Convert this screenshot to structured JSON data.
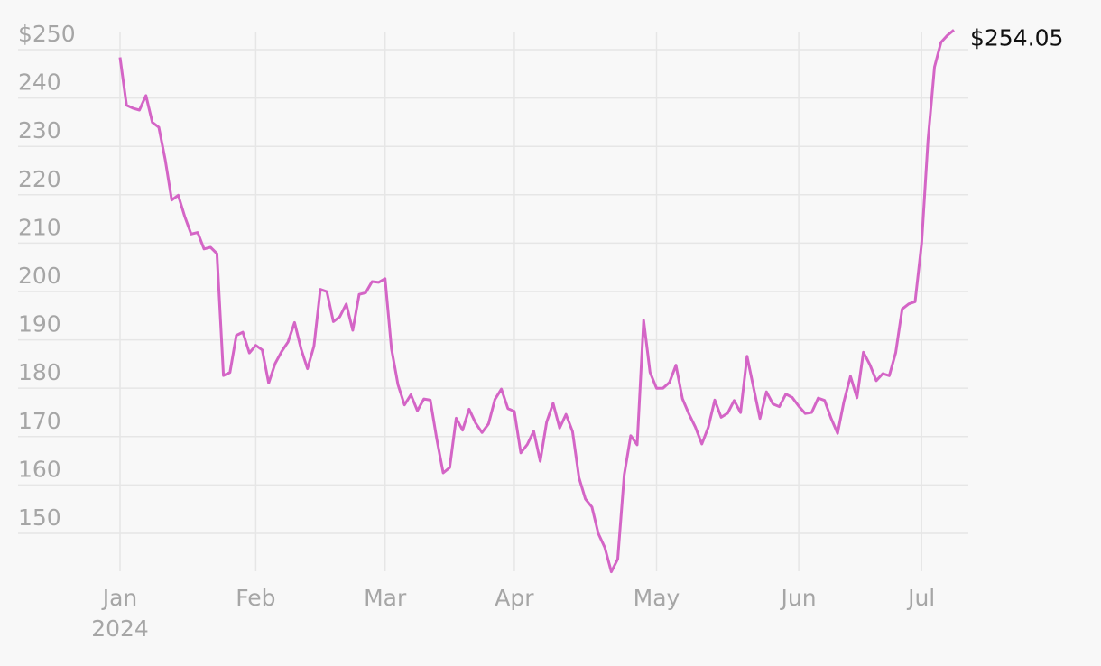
{
  "chart_data": {
    "type": "line",
    "categories": [
      "Jan",
      null,
      null,
      null,
      null,
      null,
      null,
      null,
      null,
      null,
      null,
      null,
      null,
      null,
      null,
      null,
      null,
      null,
      null,
      null,
      null,
      "Feb",
      null,
      null,
      null,
      null,
      null,
      null,
      null,
      null,
      null,
      null,
      null,
      null,
      null,
      null,
      null,
      null,
      null,
      null,
      null,
      "Mar",
      null,
      null,
      null,
      null,
      null,
      null,
      null,
      null,
      null,
      null,
      null,
      null,
      null,
      null,
      null,
      null,
      null,
      null,
      null,
      "Apr",
      null,
      null,
      null,
      null,
      null,
      null,
      null,
      null,
      null,
      null,
      null,
      null,
      null,
      null,
      null,
      null,
      null,
      null,
      null,
      null,
      null,
      "May",
      null,
      null,
      null,
      null,
      null,
      null,
      null,
      null,
      null,
      null,
      null,
      null,
      null,
      null,
      null,
      null,
      null,
      null,
      null,
      null,
      null,
      "Jun",
      null,
      null,
      null,
      null,
      null,
      null,
      null,
      null,
      null,
      null,
      null,
      null,
      null,
      null,
      null,
      null,
      null,
      null,
      "Jul",
      null,
      null,
      null,
      null,
      null
    ],
    "year_label": "2024",
    "series": [
      {
        "color": "#d465c6",
        "values": [
          248.4,
          238.5,
          237.9,
          237.5,
          240.5,
          234.96,
          233.94,
          227.22,
          218.89,
          219.91,
          215.55,
          211.88,
          212.19,
          208.8,
          209.14,
          207.83,
          182.63,
          183.25,
          190.93,
          191.59,
          187.29,
          188.86,
          187.91,
          181.06,
          185.1,
          187.58,
          189.56,
          193.57,
          188.13,
          184.02,
          188.71,
          200.45,
          199.95,
          193.76,
          194.77,
          197.41,
          191.97,
          199.4,
          199.73,
          202.04,
          201.88,
          202.64,
          188.14,
          180.74,
          176.54,
          178.65,
          175.34,
          177.77,
          177.54,
          169.48,
          162.5,
          163.57,
          173.8,
          171.32,
          175.66,
          172.82,
          170.83,
          172.63,
          177.67,
          179.83,
          175.79,
          175.22,
          166.63,
          168.38,
          171.11,
          164.9,
          172.98,
          176.88,
          171.76,
          174.6,
          171.05,
          161.48,
          157.11,
          155.45,
          149.93,
          147.05,
          142.05,
          144.68,
          162.13,
          170.18,
          168.29,
          194.05,
          183.28,
          179.99,
          180.01,
          181.19,
          184.76,
          177.81,
          174.72,
          171.97,
          168.47,
          171.89,
          177.55,
          173.99,
          174.84,
          177.46,
          174.95,
          186.6,
          180.11,
          173.74,
          179.24,
          176.75,
          176.19,
          178.79,
          178.08,
          176.29,
          174.77,
          175.0,
          177.94,
          177.48,
          173.79,
          170.66,
          177.29,
          182.47,
          178.01,
          187.44,
          184.86,
          181.57,
          183.01,
          182.58,
          187.35,
          196.37,
          197.42,
          197.88,
          209.86,
          231.26,
          246.39,
          251.52,
          252.94,
          254.05
        ]
      }
    ],
    "end_label": "$254.05",
    "ylim": [
      141,
      255
    ],
    "yticks": [
      150,
      160,
      170,
      180,
      190,
      200,
      210,
      220,
      230,
      240,
      {
        "value": 250,
        "label": "$250"
      }
    ],
    "grid": true
  }
}
